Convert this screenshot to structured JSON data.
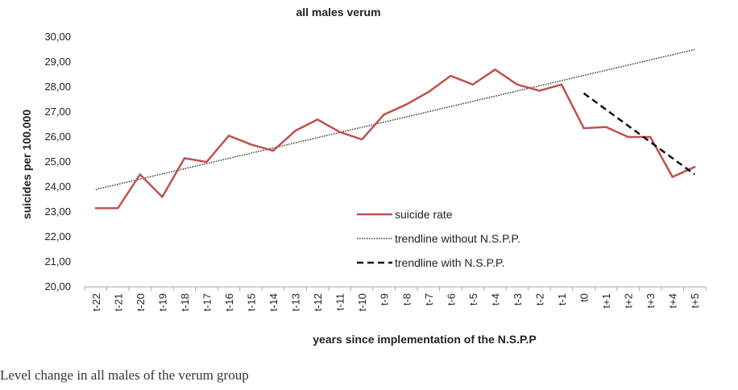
{
  "chart_data": {
    "type": "line",
    "title": "all males verum",
    "xlabel": "years since implementation of the N.S.P.P",
    "ylabel": "suicides per 100.000",
    "ylim": [
      20,
      30
    ],
    "yticks": [
      "20,00",
      "21,00",
      "22,00",
      "23,00",
      "24,00",
      "25,00",
      "26,00",
      "27,00",
      "28,00",
      "29,00",
      "30,00"
    ],
    "categories": [
      "t-22",
      "t-21",
      "t-20",
      "t-19",
      "t-18",
      "t-17",
      "t-16",
      "t-15",
      "t-14",
      "t-13",
      "t-12",
      "t-11",
      "t-10",
      "t-9",
      "t-8",
      "t-7",
      "t-6",
      "t-5",
      "t-4",
      "t-3",
      "t-2",
      "t-1",
      "t0",
      "t+1",
      "t+2",
      "t+3",
      "t+4",
      "t+5"
    ],
    "grid": false,
    "legend_position": "center-right",
    "series": [
      {
        "name": "suicide rate",
        "style": "solid",
        "color": "#C0504D",
        "values": [
          23.15,
          23.15,
          24.5,
          23.6,
          25.15,
          25.0,
          26.05,
          25.7,
          25.45,
          26.25,
          26.7,
          26.2,
          25.9,
          26.9,
          27.3,
          27.8,
          28.45,
          28.1,
          28.7,
          28.1,
          27.85,
          28.1,
          26.35,
          26.4,
          26.0,
          26.0,
          24.4,
          24.8
        ]
      },
      {
        "name": "trendline without N.S.P.P.",
        "style": "dotted",
        "color": "#333333",
        "start": {
          "x": "t-22",
          "y": 23.9
        },
        "end": {
          "x": "t+5",
          "y": 29.5
        }
      },
      {
        "name": "trendline with N.S.P.P.",
        "style": "dashed",
        "color": "#111111",
        "start": {
          "x": "t0",
          "y": 27.75
        },
        "end": {
          "x": "t+5",
          "y": 24.5
        }
      }
    ]
  },
  "caption": "Level change in all males of the verum group"
}
